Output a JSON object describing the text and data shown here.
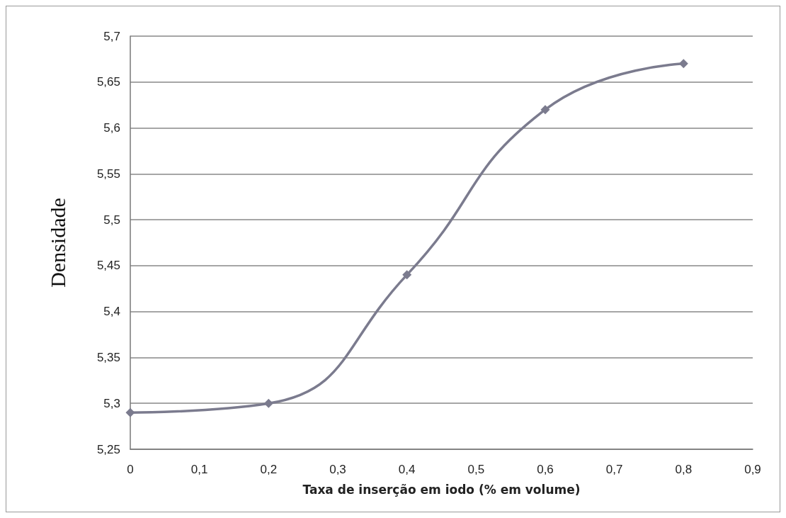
{
  "chart_data": {
    "type": "line",
    "xlabel": "Taxa de inserção em iodo (% em volume)",
    "ylabel": "Densidade",
    "x": [
      0,
      0.2,
      0.4,
      0.6,
      0.8
    ],
    "series": [
      {
        "color": "#7b7b8e",
        "values": [
          5.29,
          5.3,
          5.44,
          5.62,
          5.67
        ]
      }
    ],
    "xlim": [
      0,
      0.9
    ],
    "xticks": [
      {
        "value": 0,
        "label": "0"
      },
      {
        "value": 0.1,
        "label": "0,1"
      },
      {
        "value": 0.2,
        "label": "0,2"
      },
      {
        "value": 0.3,
        "label": "0,3"
      },
      {
        "value": 0.4,
        "label": "0,4"
      },
      {
        "value": 0.5,
        "label": "0,5"
      },
      {
        "value": 0.6,
        "label": "0,6"
      },
      {
        "value": 0.7,
        "label": "0,7"
      },
      {
        "value": 0.8,
        "label": "0,8"
      },
      {
        "value": 0.9,
        "label": "0,9"
      }
    ],
    "ylim": [
      5.25,
      5.7
    ],
    "yticks": [
      {
        "value": 5.25,
        "label": "5,25"
      },
      {
        "value": 5.3,
        "label": "5,3"
      },
      {
        "value": 5.35,
        "label": "5,35"
      },
      {
        "value": 5.4,
        "label": "5,4"
      },
      {
        "value": 5.45,
        "label": "5,45"
      },
      {
        "value": 5.5,
        "label": "5,5"
      },
      {
        "value": 5.55,
        "label": "5,55"
      },
      {
        "value": 5.6,
        "label": "5,6"
      },
      {
        "value": 5.65,
        "label": "5,65"
      },
      {
        "value": 5.7,
        "label": "5,7"
      }
    ],
    "grid": "y",
    "marker": "diamond",
    "line_style": "solid"
  }
}
